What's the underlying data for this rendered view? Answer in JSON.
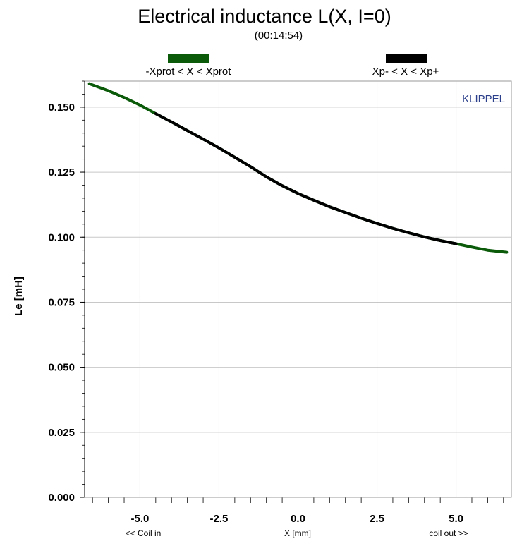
{
  "chart_data": {
    "type": "line",
    "title": "Electrical inductance L(X, I=0)",
    "subtitle": "(00:14:54)",
    "xlabel": "X [mm]",
    "ylabel": "Le [mH]",
    "x_left_note": "<< Coil in",
    "x_right_note": "coil out >>",
    "watermark": "KLIPPEL",
    "xlim": [
      -6.75,
      6.75
    ],
    "ylim": [
      0.0,
      0.16
    ],
    "x_ticks": [
      "-5.0",
      "-2.5",
      "0.0",
      "2.5",
      "5.0"
    ],
    "x_tick_values": [
      -5.0,
      -2.5,
      0.0,
      2.5,
      5.0
    ],
    "y_ticks": [
      "0.000",
      "0.025",
      "0.050",
      "0.075",
      "0.100",
      "0.125",
      "0.150"
    ],
    "y_tick_values": [
      0.0,
      0.025,
      0.05,
      0.075,
      0.1,
      0.125,
      0.15
    ],
    "grid": true,
    "colors": {
      "green": "#0a5a0a",
      "black": "#000000",
      "grid": "#c8c8c8",
      "watermark": "#2b3f8a"
    },
    "legend": [
      {
        "label": "-Xprot < X < Xprot",
        "color": "#0a5a0a"
      },
      {
        "label": "Xp- < X < Xp+",
        "color": "#000000"
      }
    ],
    "series": [
      {
        "name": "-Xprot < X < Xprot",
        "color": "#0a5a0a",
        "x": [
          -6.6,
          -6.0,
          -5.5,
          -5.0,
          -4.5,
          -4.0,
          -3.5,
          -3.0,
          -2.5,
          -2.0,
          -1.5,
          -1.0,
          -0.5,
          0.0,
          0.5,
          1.0,
          1.5,
          2.0,
          2.5,
          3.0,
          3.5,
          4.0,
          4.5,
          5.0,
          5.5,
          6.0,
          6.6
        ],
        "y": [
          0.159,
          0.1563,
          0.1537,
          0.1508,
          0.1475,
          0.1443,
          0.141,
          0.1377,
          0.1343,
          0.1307,
          0.1271,
          0.1232,
          0.1198,
          0.1168,
          0.1142,
          0.1117,
          0.1095,
          0.1073,
          0.1053,
          0.1034,
          0.1017,
          0.1001,
          0.0987,
          0.0975,
          0.0962,
          0.095,
          0.0942
        ]
      },
      {
        "name": "Xp- < X < Xp+",
        "color": "#000000",
        "x": [
          -4.5,
          -4.0,
          -3.5,
          -3.0,
          -2.5,
          -2.0,
          -1.5,
          -1.0,
          -0.5,
          0.0,
          0.5,
          1.0,
          1.5,
          2.0,
          2.5,
          3.0,
          3.5,
          4.0,
          4.5,
          5.0
        ],
        "y": [
          0.1475,
          0.1443,
          0.141,
          0.1377,
          0.1343,
          0.1307,
          0.1271,
          0.1232,
          0.1198,
          0.1168,
          0.1142,
          0.1117,
          0.1095,
          0.1073,
          0.1053,
          0.1034,
          0.1017,
          0.1001,
          0.0987,
          0.0975
        ]
      }
    ]
  }
}
